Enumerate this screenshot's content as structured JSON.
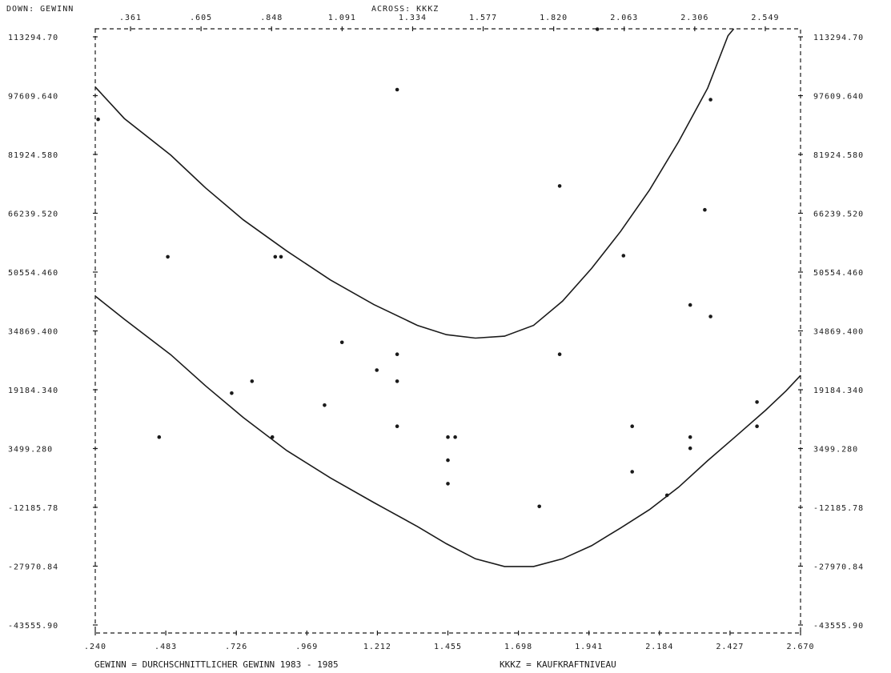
{
  "chart_data": {
    "type": "scatter",
    "header_left": "DOWN:  GEWINN",
    "header_top": "ACROSS:  KKKZ",
    "xlim": [
      0.24,
      2.67
    ],
    "ylim": [
      -43555.9,
      113294.7
    ],
    "x_ticks_top": [
      ".361",
      ".605",
      ".848",
      "1.091",
      "1.334",
      "1.577",
      "1.820",
      "2.063",
      "2.306",
      "2.549"
    ],
    "x_ticks_bottom": [
      ".240",
      ".483",
      ".726",
      ".969",
      "1.212",
      "1.455",
      "1.698",
      "1.941",
      "2.184",
      "2.427",
      "2.670"
    ],
    "y_ticks": [
      "113294.70",
      "97609.640",
      "81924.580",
      "66239.520",
      "50554.460",
      "34869.400",
      "19184.340",
      "3499.280",
      "-12185.78",
      "-27970.84",
      "-43555.90"
    ],
    "footnote_left": "GEWINN = DURCHSCHNITTLICHER GEWINN 1983 - 1985",
    "footnote_right": "KKKZ = KAUFKRAFTNIVEAU",
    "points": [
      {
        "x": 0.25,
        "y": 89800
      },
      {
        "x": 0.46,
        "y": 7300
      },
      {
        "x": 0.49,
        "y": 54100
      },
      {
        "x": 0.71,
        "y": 18700
      },
      {
        "x": 0.78,
        "y": 21800
      },
      {
        "x": 0.85,
        "y": 7300
      },
      {
        "x": 0.86,
        "y": 54100
      },
      {
        "x": 0.88,
        "y": 54100
      },
      {
        "x": 1.03,
        "y": 15600
      },
      {
        "x": 1.09,
        "y": 31900
      },
      {
        "x": 1.21,
        "y": 24700
      },
      {
        "x": 1.28,
        "y": 97500
      },
      {
        "x": 1.28,
        "y": 28800
      },
      {
        "x": 1.28,
        "y": 21800
      },
      {
        "x": 1.28,
        "y": 10100
      },
      {
        "x": 1.455,
        "y": 7300
      },
      {
        "x": 1.48,
        "y": 7300
      },
      {
        "x": 1.455,
        "y": 1300
      },
      {
        "x": 1.455,
        "y": -4800
      },
      {
        "x": 1.77,
        "y": -10700
      },
      {
        "x": 1.84,
        "y": 72500
      },
      {
        "x": 1.84,
        "y": 28800
      },
      {
        "x": 1.97,
        "y": 113200
      },
      {
        "x": 2.06,
        "y": 54400
      },
      {
        "x": 2.09,
        "y": 10100
      },
      {
        "x": 2.09,
        "y": -1700
      },
      {
        "x": 2.21,
        "y": -7800
      },
      {
        "x": 2.29,
        "y": 41600
      },
      {
        "x": 2.29,
        "y": 7300
      },
      {
        "x": 2.29,
        "y": 4400
      },
      {
        "x": 2.34,
        "y": 66300
      },
      {
        "x": 2.36,
        "y": 94900
      },
      {
        "x": 2.36,
        "y": 38600
      },
      {
        "x": 2.52,
        "y": 16400
      },
      {
        "x": 2.52,
        "y": 10100
      }
    ],
    "upper_curve": [
      [
        0.24,
        98200
      ],
      [
        0.34,
        90000
      ],
      [
        0.5,
        80500
      ],
      [
        0.62,
        72000
      ],
      [
        0.75,
        63700
      ],
      [
        0.9,
        55600
      ],
      [
        1.05,
        48100
      ],
      [
        1.2,
        41700
      ],
      [
        1.35,
        36300
      ],
      [
        1.45,
        33900
      ],
      [
        1.55,
        33000
      ],
      [
        1.65,
        33500
      ],
      [
        1.75,
        36300
      ],
      [
        1.85,
        42600
      ],
      [
        1.95,
        51100
      ],
      [
        2.05,
        60700
      ],
      [
        2.15,
        71500
      ],
      [
        2.25,
        84000
      ],
      [
        2.35,
        97900
      ],
      [
        2.42,
        111500
      ],
      [
        2.44,
        116000
      ]
    ],
    "lower_curve": [
      [
        0.24,
        43900
      ],
      [
        0.34,
        37900
      ],
      [
        0.5,
        28700
      ],
      [
        0.62,
        20600
      ],
      [
        0.75,
        12400
      ],
      [
        0.9,
        3800
      ],
      [
        1.05,
        -3300
      ],
      [
        1.2,
        -9700
      ],
      [
        1.35,
        -15900
      ],
      [
        1.45,
        -20400
      ],
      [
        1.55,
        -24300
      ],
      [
        1.65,
        -26300
      ],
      [
        1.75,
        -26300
      ],
      [
        1.85,
        -24300
      ],
      [
        1.95,
        -20900
      ],
      [
        2.05,
        -16300
      ],
      [
        2.15,
        -11500
      ],
      [
        2.25,
        -5700
      ],
      [
        2.35,
        1200
      ],
      [
        2.45,
        7700
      ],
      [
        2.55,
        14300
      ],
      [
        2.62,
        19300
      ],
      [
        2.67,
        23300
      ]
    ]
  }
}
